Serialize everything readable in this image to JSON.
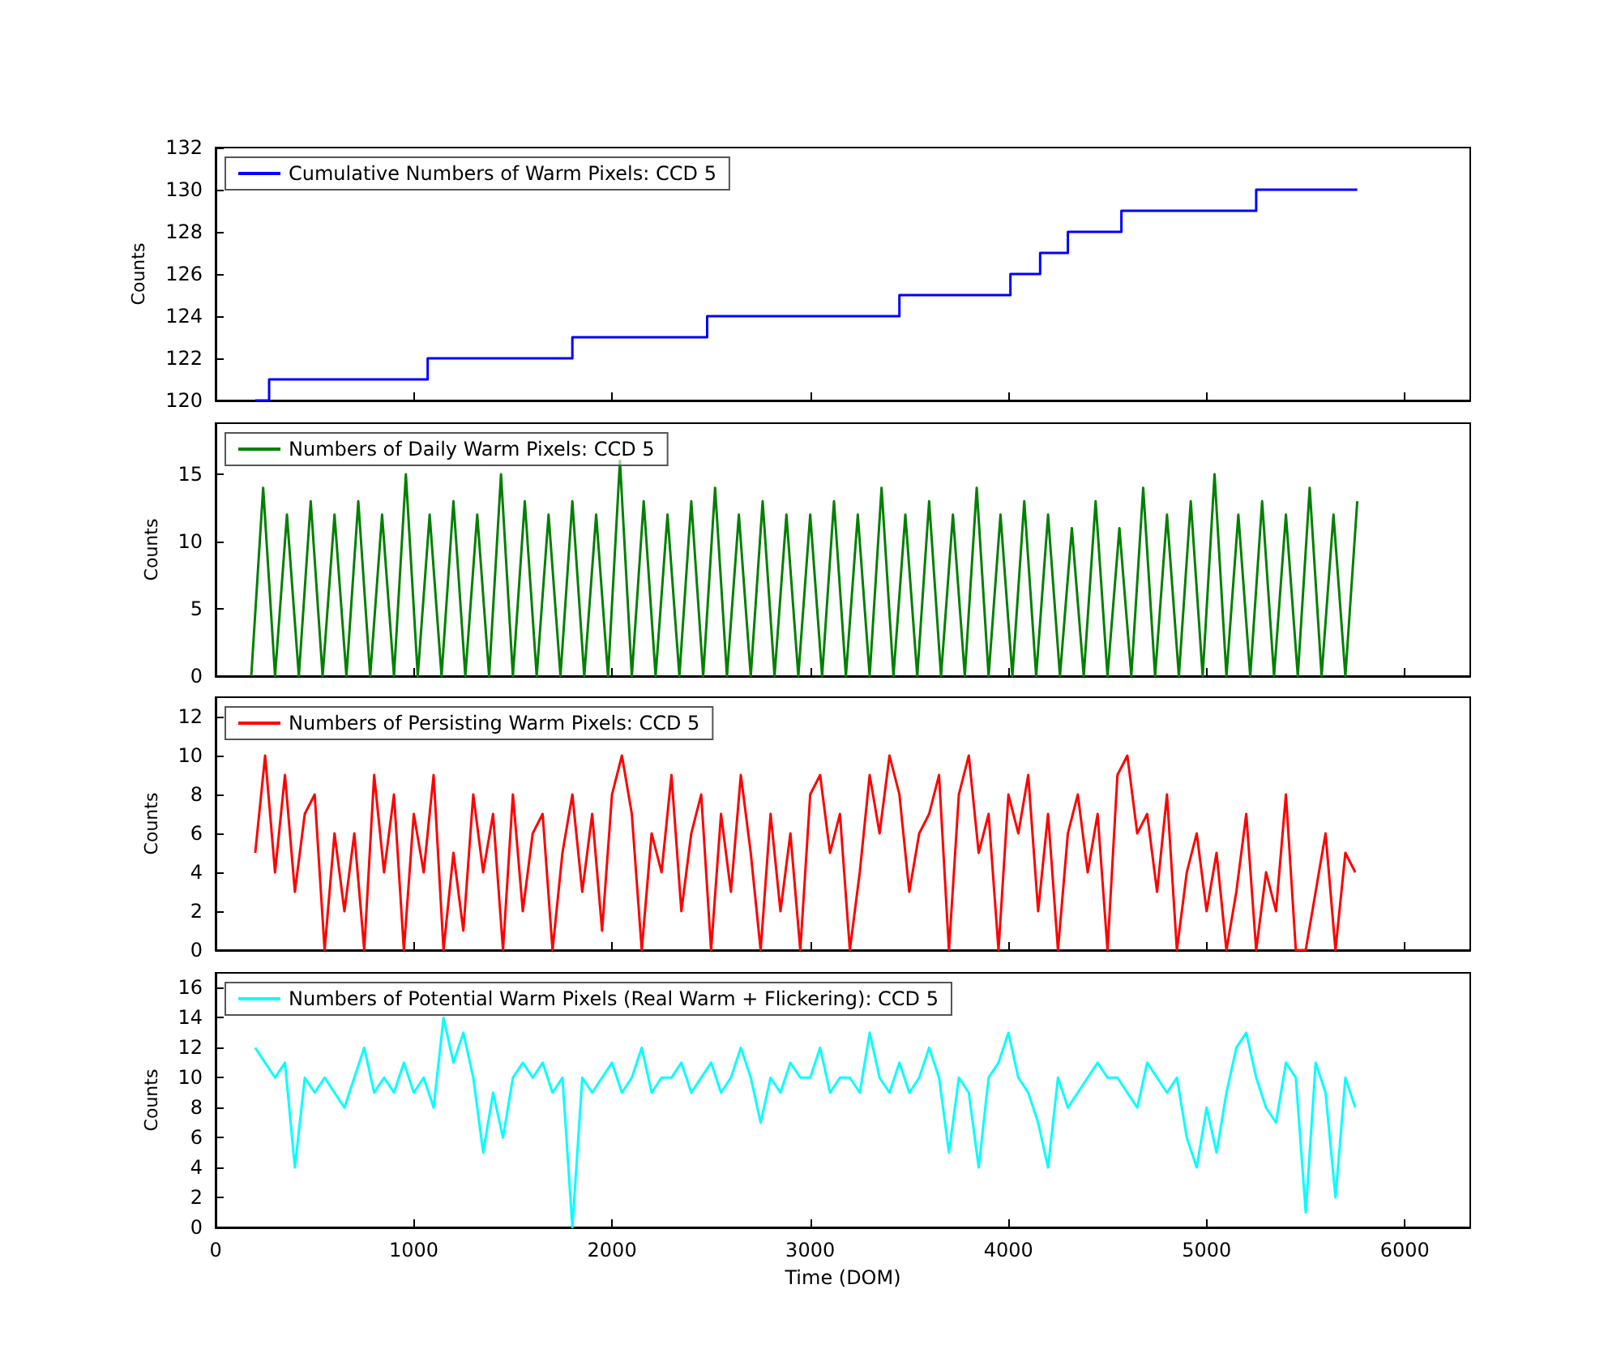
{
  "chart_data": [
    {
      "type": "step",
      "ylabel": "Counts",
      "xlim": [
        0,
        6330
      ],
      "xticks": [
        0,
        1000,
        2000,
        3000,
        4000,
        5000,
        6000
      ],
      "ylim": [
        120,
        132
      ],
      "yticks": [
        120,
        122,
        124,
        126,
        128,
        130,
        132
      ],
      "tick_labels": "y",
      "legend": "top left",
      "grid": false,
      "series": [
        {
          "name": "Cumulative Numbers of Warm Pixels: CCD 5",
          "color": "#0000ff",
          "x": [
            200,
            270,
            1070,
            1800,
            2480,
            3450,
            4010,
            4160,
            4300,
            4570,
            5250,
            5760
          ],
          "values": [
            120,
            121,
            122,
            123,
            124,
            125,
            126,
            127,
            128,
            129,
            130,
            130
          ]
        }
      ]
    },
    {
      "type": "line",
      "ylabel": "Counts",
      "xlim": [
        0,
        6330
      ],
      "xticks": [
        0,
        1000,
        2000,
        3000,
        4000,
        5000,
        6000
      ],
      "ylim": [
        0,
        18.8
      ],
      "yticks": [
        0,
        5,
        10,
        15
      ],
      "tick_labels": "y",
      "legend": "top left",
      "grid": false,
      "series": [
        {
          "name": "Numbers of Daily Warm Pixels: CCD 5",
          "color": "#008000",
          "x": [
            180,
            240,
            300,
            360,
            420,
            480,
            540,
            600,
            660,
            720,
            780,
            840,
            900,
            960,
            1020,
            1080,
            1140,
            1200,
            1260,
            1320,
            1380,
            1440,
            1500,
            1560,
            1620,
            1680,
            1740,
            1800,
            1860,
            1920,
            1980,
            2040,
            2100,
            2160,
            2220,
            2280,
            2340,
            2400,
            2460,
            2520,
            2580,
            2640,
            2700,
            2760,
            2820,
            2880,
            2940,
            3000,
            3060,
            3120,
            3180,
            3240,
            3300,
            3360,
            3420,
            3480,
            3540,
            3600,
            3660,
            3720,
            3780,
            3840,
            3900,
            3960,
            4020,
            4080,
            4140,
            4200,
            4260,
            4320,
            4380,
            4440,
            4500,
            4560,
            4620,
            4680,
            4740,
            4800,
            4860,
            4920,
            4980,
            5040,
            5100,
            5160,
            5220,
            5280,
            5340,
            5400,
            5460,
            5520,
            5580,
            5640,
            5700,
            5760
          ],
          "values": [
            0,
            14,
            0,
            12,
            0,
            13,
            0,
            12,
            0,
            13,
            0,
            12,
            0,
            15,
            0,
            12,
            0,
            13,
            0,
            12,
            0,
            15,
            0,
            13,
            0,
            12,
            0,
            13,
            0,
            12,
            0,
            16,
            0,
            13,
            0,
            12,
            0,
            13,
            0,
            14,
            0,
            12,
            0,
            13,
            0,
            12,
            0,
            12,
            0,
            13,
            0,
            12,
            0,
            14,
            0,
            12,
            0,
            13,
            0,
            12,
            0,
            14,
            0,
            12,
            0,
            13,
            0,
            12,
            0,
            11,
            0,
            13,
            0,
            11,
            0,
            14,
            0,
            12,
            0,
            13,
            0,
            15,
            0,
            12,
            0,
            13,
            0,
            12,
            0,
            14,
            0,
            12,
            0,
            13
          ]
        }
      ]
    },
    {
      "type": "line",
      "ylabel": "Counts",
      "xlim": [
        0,
        6330
      ],
      "xticks": [
        0,
        1000,
        2000,
        3000,
        4000,
        5000,
        6000
      ],
      "ylim": [
        0,
        13
      ],
      "yticks": [
        0,
        2,
        4,
        6,
        8,
        10,
        12
      ],
      "tick_labels": "y",
      "legend": "top left",
      "grid": false,
      "series": [
        {
          "name": "Numbers of Persisting Warm Pixels: CCD 5",
          "color": "#ff0000",
          "x": [
            200,
            250,
            300,
            350,
            400,
            450,
            500,
            550,
            600,
            650,
            700,
            750,
            800,
            850,
            900,
            950,
            1000,
            1050,
            1100,
            1150,
            1200,
            1250,
            1300,
            1350,
            1400,
            1450,
            1500,
            1550,
            1600,
            1650,
            1700,
            1750,
            1800,
            1850,
            1900,
            1950,
            2000,
            2050,
            2100,
            2150,
            2200,
            2250,
            2300,
            2350,
            2400,
            2450,
            2500,
            2550,
            2600,
            2650,
            2700,
            2750,
            2800,
            2850,
            2900,
            2950,
            3000,
            3050,
            3100,
            3150,
            3200,
            3250,
            3300,
            3350,
            3400,
            3450,
            3500,
            3550,
            3600,
            3650,
            3700,
            3750,
            3800,
            3850,
            3900,
            3950,
            4000,
            4050,
            4100,
            4150,
            4200,
            4250,
            4300,
            4350,
            4400,
            4450,
            4500,
            4550,
            4600,
            4650,
            4700,
            4750,
            4800,
            4850,
            4900,
            4950,
            5000,
            5050,
            5100,
            5150,
            5200,
            5250,
            5300,
            5350,
            5400,
            5450,
            5500,
            5550,
            5600,
            5650,
            5700,
            5750
          ],
          "values": [
            5,
            10,
            4,
            9,
            3,
            7,
            8,
            0,
            6,
            2,
            6,
            0,
            9,
            4,
            8,
            0,
            7,
            4,
            9,
            0,
            5,
            1,
            8,
            4,
            7,
            0,
            8,
            2,
            6,
            7,
            0,
            5,
            8,
            3,
            7,
            1,
            8,
            10,
            7,
            0,
            6,
            4,
            9,
            2,
            6,
            8,
            0,
            7,
            3,
            9,
            5,
            0,
            7,
            2,
            6,
            0,
            8,
            9,
            5,
            7,
            0,
            4,
            9,
            6,
            10,
            8,
            3,
            6,
            7,
            9,
            0,
            8,
            10,
            5,
            7,
            0,
            8,
            6,
            9,
            2,
            7,
            0,
            6,
            8,
            4,
            7,
            0,
            9,
            10,
            6,
            7,
            3,
            8,
            0,
            4,
            6,
            2,
            5,
            0,
            3,
            7,
            0,
            4,
            2,
            8,
            0,
            0,
            3,
            6,
            0,
            5,
            4
          ]
        }
      ]
    },
    {
      "type": "line",
      "xlabel": "Time (DOM)",
      "ylabel": "Counts",
      "xlim": [
        0,
        6330
      ],
      "xticks": [
        0,
        1000,
        2000,
        3000,
        4000,
        5000,
        6000
      ],
      "ylim": [
        0,
        17
      ],
      "yticks": [
        0,
        2,
        4,
        6,
        8,
        10,
        12,
        14,
        16
      ],
      "legend": "top left",
      "grid": false,
      "series": [
        {
          "name": "Numbers of Potential Warm Pixels (Real Warm + Flickering): CCD 5",
          "color": "#00ffff",
          "x": [
            200,
            250,
            300,
            350,
            400,
            450,
            500,
            550,
            600,
            650,
            700,
            750,
            800,
            850,
            900,
            950,
            1000,
            1050,
            1100,
            1150,
            1200,
            1250,
            1300,
            1350,
            1400,
            1450,
            1500,
            1550,
            1600,
            1650,
            1700,
            1750,
            1800,
            1850,
            1900,
            1950,
            2000,
            2050,
            2100,
            2150,
            2200,
            2250,
            2300,
            2350,
            2400,
            2450,
            2500,
            2550,
            2600,
            2650,
            2700,
            2750,
            2800,
            2850,
            2900,
            2950,
            3000,
            3050,
            3100,
            3150,
            3200,
            3250,
            3300,
            3350,
            3400,
            3450,
            3500,
            3550,
            3600,
            3650,
            3700,
            3750,
            3800,
            3850,
            3900,
            3950,
            4000,
            4050,
            4100,
            4150,
            4200,
            4250,
            4300,
            4350,
            4400,
            4450,
            4500,
            4550,
            4600,
            4650,
            4700,
            4750,
            4800,
            4850,
            4900,
            4950,
            5000,
            5050,
            5100,
            5150,
            5200,
            5250,
            5300,
            5350,
            5400,
            5450,
            5500,
            5550,
            5600,
            5650,
            5700,
            5750
          ],
          "values": [
            12,
            11,
            10,
            11,
            4,
            10,
            9,
            10,
            9,
            8,
            10,
            12,
            9,
            10,
            9,
            11,
            9,
            10,
            8,
            14,
            11,
            13,
            10,
            5,
            9,
            6,
            10,
            11,
            10,
            11,
            9,
            10,
            0,
            10,
            9,
            10,
            11,
            9,
            10,
            12,
            9,
            10,
            10,
            11,
            9,
            10,
            11,
            9,
            10,
            12,
            10,
            7,
            10,
            9,
            11,
            10,
            10,
            12,
            9,
            10,
            10,
            9,
            13,
            10,
            9,
            11,
            9,
            10,
            12,
            10,
            5,
            10,
            9,
            4,
            10,
            11,
            13,
            10,
            9,
            7,
            4,
            10,
            8,
            9,
            10,
            11,
            10,
            10,
            9,
            8,
            11,
            10,
            9,
            10,
            6,
            4,
            8,
            5,
            9,
            12,
            13,
            10,
            8,
            7,
            11,
            10,
            1,
            11,
            9,
            2,
            10,
            8
          ]
        }
      ]
    }
  ]
}
